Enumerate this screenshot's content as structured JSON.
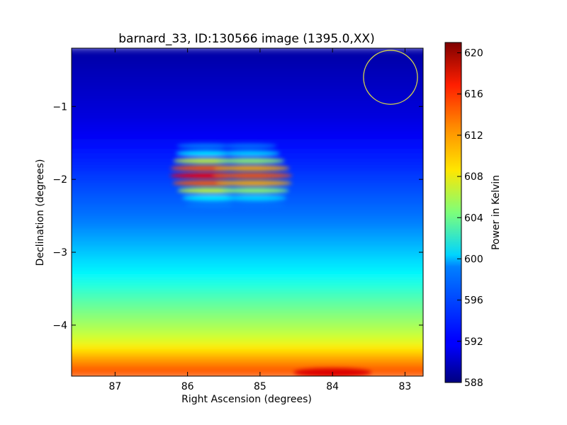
{
  "chart_data": {
    "type": "heatmap",
    "title": "barnard_33, ID:130566 image (1395.0,XX)",
    "xlabel": "Right Ascension (degrees)",
    "ylabel": "Declination (degrees)",
    "xlim": [
      87.6,
      82.75
    ],
    "ylim": [
      -4.7,
      -0.2
    ],
    "x_ticks": [
      87,
      86,
      85,
      84,
      83
    ],
    "y_ticks": [
      -1,
      -2,
      -3,
      -4
    ],
    "x_tick_labels": [
      "87",
      "86",
      "85",
      "84",
      "83"
    ],
    "y_tick_labels": [
      "−1",
      "−2",
      "−3",
      "−4"
    ],
    "colorbar": {
      "label": "Power in Kelvin",
      "range": [
        588,
        621
      ],
      "ticks": [
        588,
        592,
        596,
        600,
        604,
        608,
        612,
        616,
        620
      ],
      "tick_labels": [
        "588",
        "592",
        "596",
        "600",
        "604",
        "608",
        "612",
        "616",
        "620"
      ],
      "colormap": "jet"
    },
    "features": [
      {
        "name": "bright-source-left",
        "ra": 85.7,
        "dec": -1.95,
        "peak_kelvin": 617
      },
      {
        "name": "bright-source-right",
        "ra": 85.1,
        "dec": -1.95,
        "peak_kelvin": 614
      },
      {
        "name": "bottom-edge-hotspot",
        "ra": 84.0,
        "dec": -4.65,
        "peak_kelvin": 618
      }
    ],
    "beam_circle": {
      "ra": 83.2,
      "dec": -0.6,
      "radius_deg": 0.37,
      "color": "#d4d44a"
    },
    "gradient": {
      "top_kelvin": 590,
      "middle_kelvin": 599,
      "lower_kelvin": 606,
      "bottom_kelvin": 613
    }
  }
}
